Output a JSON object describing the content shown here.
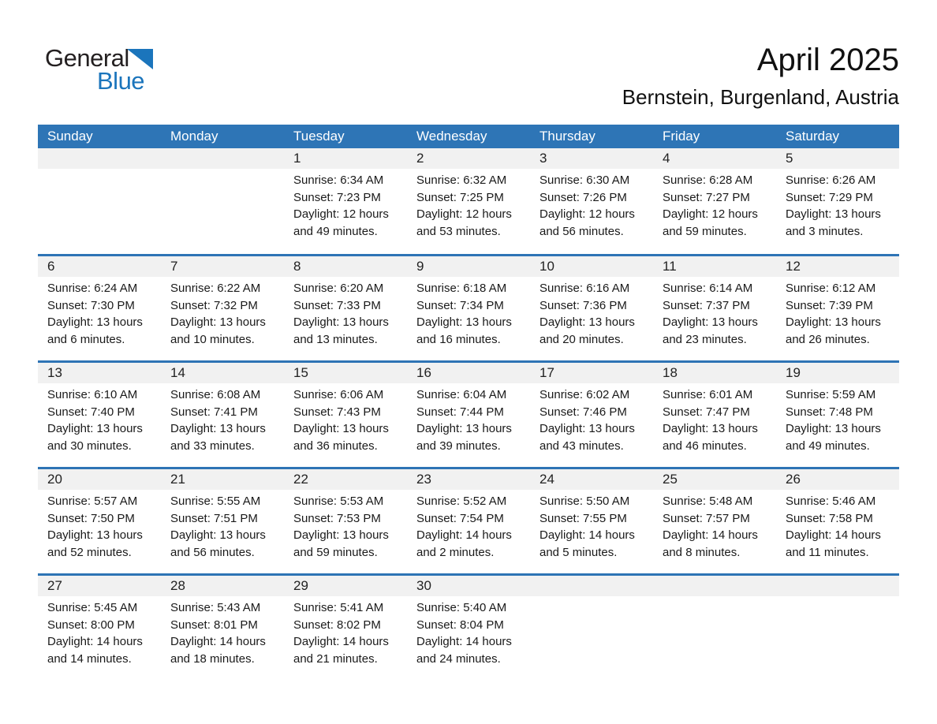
{
  "logo": {
    "part1": "General",
    "part2": "Blue"
  },
  "header": {
    "title": "April 2025",
    "subtitle": "Bernstein, Burgenland, Austria"
  },
  "labels": {
    "sunrise": "Sunrise:",
    "sunset": "Sunset:",
    "daylight": "Daylight:"
  },
  "colors": {
    "accent": "#2e75b6",
    "accent_border": "#2e74b5",
    "strip": "#f1f1f1",
    "logo_blue": "#1b75bc"
  },
  "calendar": {
    "weekdays": [
      "Sunday",
      "Monday",
      "Tuesday",
      "Wednesday",
      "Thursday",
      "Friday",
      "Saturday"
    ],
    "weeks": [
      {
        "cells": [
          null,
          null,
          {
            "day": "1",
            "sunrise": "6:34 AM",
            "sunset": "7:23 PM",
            "daylight": "12 hours and 49 minutes."
          },
          {
            "day": "2",
            "sunrise": "6:32 AM",
            "sunset": "7:25 PM",
            "daylight": "12 hours and 53 minutes."
          },
          {
            "day": "3",
            "sunrise": "6:30 AM",
            "sunset": "7:26 PM",
            "daylight": "12 hours and 56 minutes."
          },
          {
            "day": "4",
            "sunrise": "6:28 AM",
            "sunset": "7:27 PM",
            "daylight": "12 hours and 59 minutes."
          },
          {
            "day": "5",
            "sunrise": "6:26 AM",
            "sunset": "7:29 PM",
            "daylight": "13 hours and 3 minutes."
          }
        ]
      },
      {
        "cells": [
          {
            "day": "6",
            "sunrise": "6:24 AM",
            "sunset": "7:30 PM",
            "daylight": "13 hours and 6 minutes."
          },
          {
            "day": "7",
            "sunrise": "6:22 AM",
            "sunset": "7:32 PM",
            "daylight": "13 hours and 10 minutes."
          },
          {
            "day": "8",
            "sunrise": "6:20 AM",
            "sunset": "7:33 PM",
            "daylight": "13 hours and 13 minutes."
          },
          {
            "day": "9",
            "sunrise": "6:18 AM",
            "sunset": "7:34 PM",
            "daylight": "13 hours and 16 minutes."
          },
          {
            "day": "10",
            "sunrise": "6:16 AM",
            "sunset": "7:36 PM",
            "daylight": "13 hours and 20 minutes."
          },
          {
            "day": "11",
            "sunrise": "6:14 AM",
            "sunset": "7:37 PM",
            "daylight": "13 hours and 23 minutes."
          },
          {
            "day": "12",
            "sunrise": "6:12 AM",
            "sunset": "7:39 PM",
            "daylight": "13 hours and 26 minutes."
          }
        ]
      },
      {
        "cells": [
          {
            "day": "13",
            "sunrise": "6:10 AM",
            "sunset": "7:40 PM",
            "daylight": "13 hours and 30 minutes."
          },
          {
            "day": "14",
            "sunrise": "6:08 AM",
            "sunset": "7:41 PM",
            "daylight": "13 hours and 33 minutes."
          },
          {
            "day": "15",
            "sunrise": "6:06 AM",
            "sunset": "7:43 PM",
            "daylight": "13 hours and 36 minutes."
          },
          {
            "day": "16",
            "sunrise": "6:04 AM",
            "sunset": "7:44 PM",
            "daylight": "13 hours and 39 minutes."
          },
          {
            "day": "17",
            "sunrise": "6:02 AM",
            "sunset": "7:46 PM",
            "daylight": "13 hours and 43 minutes."
          },
          {
            "day": "18",
            "sunrise": "6:01 AM",
            "sunset": "7:47 PM",
            "daylight": "13 hours and 46 minutes."
          },
          {
            "day": "19",
            "sunrise": "5:59 AM",
            "sunset": "7:48 PM",
            "daylight": "13 hours and 49 minutes."
          }
        ]
      },
      {
        "cells": [
          {
            "day": "20",
            "sunrise": "5:57 AM",
            "sunset": "7:50 PM",
            "daylight": "13 hours and 52 minutes."
          },
          {
            "day": "21",
            "sunrise": "5:55 AM",
            "sunset": "7:51 PM",
            "daylight": "13 hours and 56 minutes."
          },
          {
            "day": "22",
            "sunrise": "5:53 AM",
            "sunset": "7:53 PM",
            "daylight": "13 hours and 59 minutes."
          },
          {
            "day": "23",
            "sunrise": "5:52 AM",
            "sunset": "7:54 PM",
            "daylight": "14 hours and 2 minutes."
          },
          {
            "day": "24",
            "sunrise": "5:50 AM",
            "sunset": "7:55 PM",
            "daylight": "14 hours and 5 minutes."
          },
          {
            "day": "25",
            "sunrise": "5:48 AM",
            "sunset": "7:57 PM",
            "daylight": "14 hours and 8 minutes."
          },
          {
            "day": "26",
            "sunrise": "5:46 AM",
            "sunset": "7:58 PM",
            "daylight": "14 hours and 11 minutes."
          }
        ]
      },
      {
        "cells": [
          {
            "day": "27",
            "sunrise": "5:45 AM",
            "sunset": "8:00 PM",
            "daylight": "14 hours and 14 minutes."
          },
          {
            "day": "28",
            "sunrise": "5:43 AM",
            "sunset": "8:01 PM",
            "daylight": "14 hours and 18 minutes."
          },
          {
            "day": "29",
            "sunrise": "5:41 AM",
            "sunset": "8:02 PM",
            "daylight": "14 hours and 21 minutes."
          },
          {
            "day": "30",
            "sunrise": "5:40 AM",
            "sunset": "8:04 PM",
            "daylight": "14 hours and 24 minutes."
          },
          null,
          null,
          null
        ]
      }
    ]
  }
}
